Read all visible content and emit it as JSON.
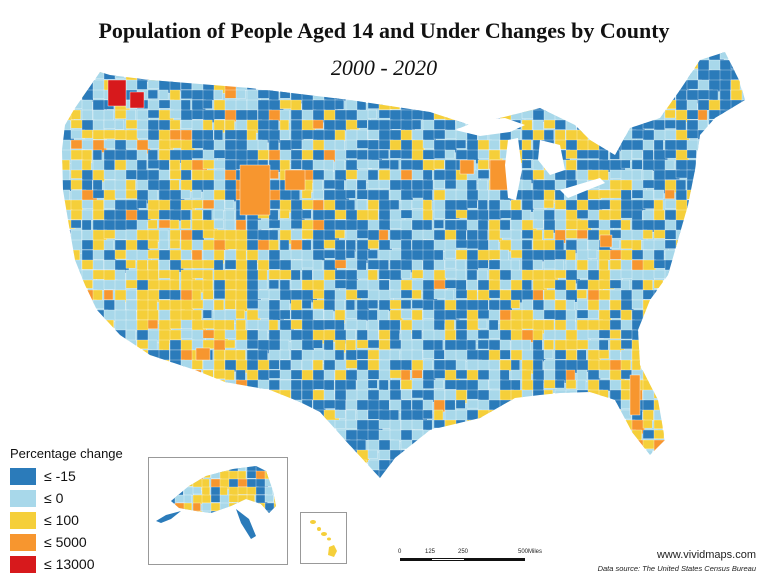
{
  "title": "Population of People Aged 14 and Under Changes by County",
  "subtitle": "2000 - 2020",
  "legend": {
    "title": "Percentage change",
    "items": [
      {
        "label": "≤ -15",
        "color": "#2b7bba"
      },
      {
        "label": "≤ 0",
        "color": "#a8d8ea"
      },
      {
        "label": "≤ 100",
        "color": "#f5cf3a"
      },
      {
        "label": "≤ 5000",
        "color": "#f7962f"
      },
      {
        "label": "≤ 13000",
        "color": "#d7191c"
      }
    ]
  },
  "scale_bar": {
    "labels": [
      "0",
      "125",
      "250",
      "500Miles"
    ]
  },
  "footer": {
    "website": "www.vividmaps.com",
    "source": "Data source: The United States Census Bureau"
  }
}
